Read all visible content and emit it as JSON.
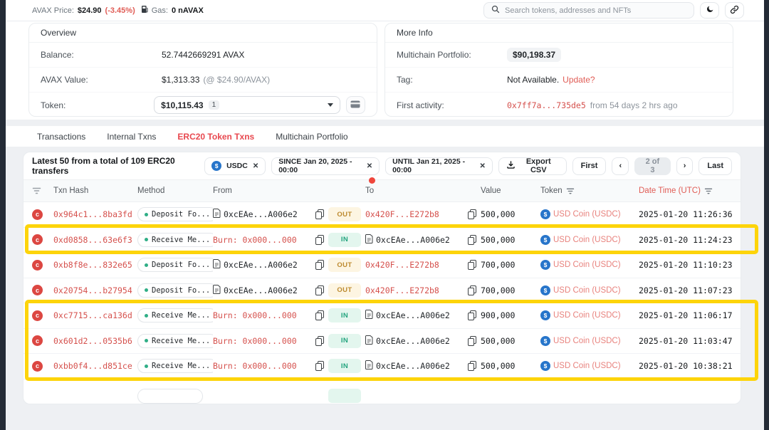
{
  "topbar": {
    "price_label": "AVAX Price:",
    "price_value": "$24.90",
    "price_change": "(-3.45%)",
    "gas_label": "Gas:",
    "gas_value": "0 nAVAX",
    "search_placeholder": "Search tokens, addresses and NFTs"
  },
  "overview": {
    "title": "Overview",
    "balance_label": "Balance:",
    "balance_value": "52.7442669291 AVAX",
    "avax_value_label": "AVAX Value:",
    "avax_value": "$1,313.33",
    "avax_value_note": "(@ $24.90/AVAX)",
    "token_label": "Token:",
    "token_value": "$10,115.43",
    "token_count": "1"
  },
  "more_info": {
    "title": "More Info",
    "portfolio_label": "Multichain Portfolio:",
    "portfolio_value": "$90,198.37",
    "tag_label": "Tag:",
    "tag_value": "Not Available.",
    "tag_link": "Update?",
    "activity_label": "First activity:",
    "activity_hash": "0x7ff7a...735de5",
    "activity_ago": "from 54 days 2 hrs ago"
  },
  "tabs": [
    {
      "label": "Transactions",
      "active": false
    },
    {
      "label": "Internal Txns",
      "active": false
    },
    {
      "label": "ERC20 Token Txns",
      "active": true
    },
    {
      "label": "Multichain Portfolio",
      "active": false
    }
  ],
  "toolbar": {
    "summary": "Latest 50 from a total of 109 ERC20 transfers",
    "filters": [
      {
        "label": "USDC",
        "icon": "usdc-token-icon"
      },
      {
        "label": "SINCE Jan 20, 2025 - 00:00"
      },
      {
        "label": "UNTIL Jan 21, 2025 - 00:00"
      }
    ],
    "export_label": "Export CSV",
    "pagination": {
      "first": "First",
      "prev": "‹",
      "current": "2 of 3",
      "next": "›",
      "last": "Last"
    }
  },
  "table": {
    "headers": {
      "hash": "Txn Hash",
      "method": "Method",
      "from": "From",
      "to": "To",
      "value": "Value",
      "token": "Token",
      "date": "Date Time (UTC)"
    },
    "rows": [
      {
        "hash": "0x964c1...8ba3fd",
        "method": "Deposit Fo...",
        "from": {
          "text": "0xcEAe...A006e2",
          "type": "contract"
        },
        "direction": "OUT",
        "to": {
          "text": "0x420F...E272b8",
          "type": "link"
        },
        "value": "500,000",
        "token": "USD Coin (USDC)",
        "datetime": "2025-01-20 11:26:36",
        "highlighted": false
      },
      {
        "hash": "0xd0858...63e6f3",
        "method": "Receive Me...",
        "from": {
          "text": "Burn: 0x000...000",
          "type": "burn"
        },
        "direction": "IN",
        "to": {
          "text": "0xcEAe...A006e2",
          "type": "contract"
        },
        "value": "500,000",
        "token": "USD Coin (USDC)",
        "datetime": "2025-01-20 11:24:23",
        "highlighted": true
      },
      {
        "hash": "0xb8f8e...832e65",
        "method": "Deposit Fo...",
        "from": {
          "text": "0xcEAe...A006e2",
          "type": "contract"
        },
        "direction": "OUT",
        "to": {
          "text": "0x420F...E272b8",
          "type": "link"
        },
        "value": "700,000",
        "token": "USD Coin (USDC)",
        "datetime": "2025-01-20 11:10:23",
        "highlighted": false
      },
      {
        "hash": "0x20754...b27954",
        "method": "Deposit Fo...",
        "from": {
          "text": "0xcEAe...A006e2",
          "type": "contract"
        },
        "direction": "OUT",
        "to": {
          "text": "0x420F...E272b8",
          "type": "link"
        },
        "value": "700,000",
        "token": "USD Coin (USDC)",
        "datetime": "2025-01-20 11:07:23",
        "highlighted": false
      },
      {
        "hash": "0xc7715...ca136d",
        "method": "Receive Me...",
        "from": {
          "text": "Burn: 0x000...000",
          "type": "burn"
        },
        "direction": "IN",
        "to": {
          "text": "0xcEAe...A006e2",
          "type": "contract"
        },
        "value": "900,000",
        "token": "USD Coin (USDC)",
        "datetime": "2025-01-20 11:06:17",
        "highlighted": true
      },
      {
        "hash": "0x601d2...0535b6",
        "method": "Receive Me...",
        "from": {
          "text": "Burn: 0x000...000",
          "type": "burn"
        },
        "direction": "IN",
        "to": {
          "text": "0xcEAe...A006e2",
          "type": "contract"
        },
        "value": "500,000",
        "token": "USD Coin (USDC)",
        "datetime": "2025-01-20 11:03:47",
        "highlighted": true
      },
      {
        "hash": "0xbb0f4...d851ce",
        "method": "Receive Me...",
        "from": {
          "text": "Burn: 0x000...000",
          "type": "burn"
        },
        "direction": "IN",
        "to": {
          "text": "0xcEAe...A006e2",
          "type": "contract"
        },
        "value": "500,000",
        "token": "USD Coin (USDC)",
        "datetime": "2025-01-20 10:38:21",
        "highlighted": true
      }
    ],
    "partial_row": true
  },
  "colors": {
    "accent_red": "#d5504c",
    "tab_active_red": "#e8484f",
    "usdc_blue": "#2775ca",
    "highlight_yellow": "#fdd40a",
    "in_text": "#23a47f",
    "in_bg": "#e3f6ee",
    "out_text": "#bd8a2f",
    "out_bg": "#fdf5e2"
  }
}
